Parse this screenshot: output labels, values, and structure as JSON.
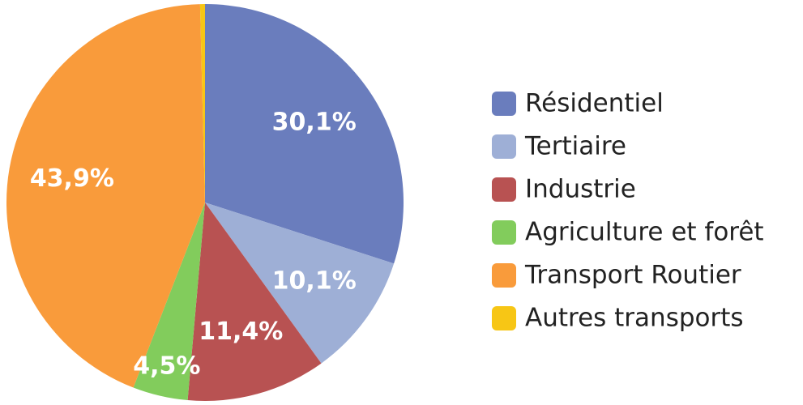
{
  "chart_data": {
    "type": "pie",
    "categories": [
      "Résidentiel",
      "Tertiaire",
      "Industrie",
      "Agriculture et forêt",
      "Transport Routier",
      "Autres transports"
    ],
    "values": [
      30.1,
      10.1,
      11.4,
      4.5,
      43.9,
      0.4
    ],
    "value_labels": [
      "30,1%",
      "10,1%",
      "11,4%",
      "4,5%",
      "43,9%",
      null
    ],
    "colors": [
      "#6a7dbd",
      "#9eafd6",
      "#b85252",
      "#82cc5c",
      "#f99b3b",
      "#f7c615"
    ],
    "legend": "right"
  }
}
